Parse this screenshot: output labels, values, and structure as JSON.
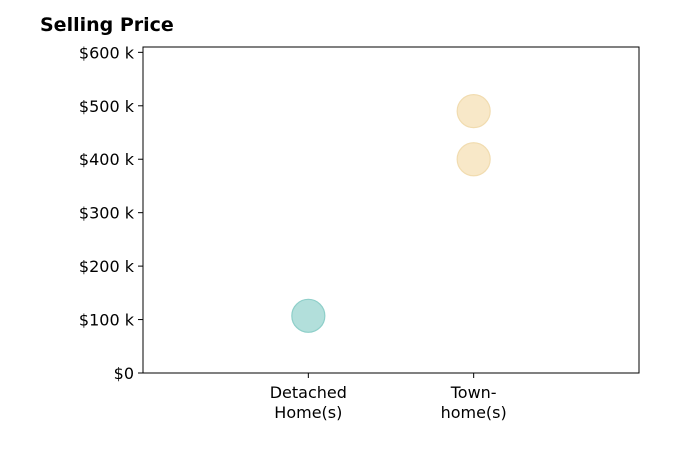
{
  "chart_data": {
    "type": "scatter",
    "title": "Selling Price",
    "categories": [
      [
        "Detached",
        "Home(s)"
      ],
      [
        "Town-",
        "home(s)"
      ]
    ],
    "ylim": [
      0,
      610000
    ],
    "yticks": [
      0,
      100000,
      200000,
      300000,
      400000,
      500000,
      600000
    ],
    "ytick_labels": [
      "$0",
      "$100 k",
      "$200 k",
      "$300 k",
      "$400 k",
      "$500 k",
      "$600 k"
    ],
    "xlim": [
      -1,
      2
    ],
    "grid": false,
    "points": [
      {
        "category_index": 0,
        "value": 107000,
        "color": "#b2dfdb"
      },
      {
        "category_index": 1,
        "value": 400000,
        "color": "#f8e8c8"
      },
      {
        "category_index": 1,
        "value": 490000,
        "color": "#f8e8c8"
      }
    ],
    "point_edge_colors": [
      "#8ecfc9",
      "#f1dcb0"
    ]
  }
}
